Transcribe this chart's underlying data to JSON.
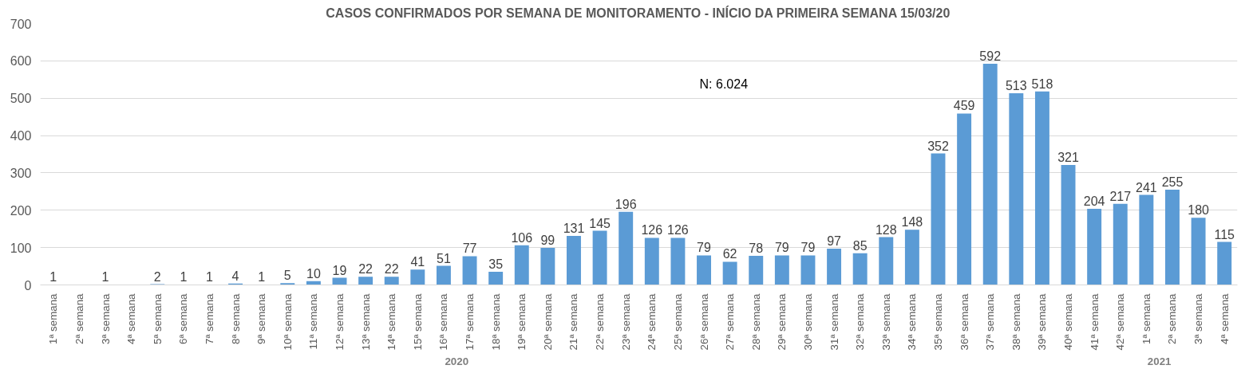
{
  "chart_data": {
    "type": "bar",
    "title": "CASOS CONFIRMADOS POR SEMANA DE MONITORAMENTO - INÍCIO DA PRIMEIRA SEMANA 15/03/20",
    "categories": [
      "1ª semana",
      "2ª semana",
      "3ª semana",
      "4ª semana",
      "5ª semana",
      "6ª semana",
      "7ª semana",
      "8ª semana",
      "9ª semana",
      "10ª semana",
      "11ª semana",
      "12ª semana",
      "13ª semana",
      "14ª semana",
      "15ª semana",
      "16ª semana",
      "17ª semana",
      "18ª semana",
      "19ª semana",
      "20ª semana",
      "21ª semana",
      "22ª semana",
      "23ª semana",
      "24ª semana",
      "25ª semana",
      "26ª semana",
      "27ª semana",
      "28ª semana",
      "29ª semana",
      "30ª semana",
      "31ª semana",
      "32ª semana",
      "33ª semana",
      "34ª semana",
      "35ª semana",
      "36ª semana",
      "37ª semana",
      "38ª semana",
      "39ª semana",
      "40ª semana",
      "41ª semana",
      "42ª semana",
      "1ª semana",
      "2ª semana",
      "3ª semana",
      "4ª semana"
    ],
    "values": [
      1,
      0,
      1,
      0,
      2,
      1,
      1,
      4,
      1,
      5,
      10,
      19,
      22,
      22,
      41,
      51,
      77,
      35,
      106,
      99,
      131,
      145,
      196,
      126,
      126,
      79,
      62,
      78,
      79,
      79,
      97,
      85,
      128,
      148,
      352,
      459,
      592,
      513,
      518,
      321,
      204,
      217,
      241,
      255,
      180,
      115
    ],
    "value_labels": [
      "1",
      null,
      "1",
      null,
      "2",
      "1",
      "1",
      "4",
      "1",
      "5",
      "10",
      "19",
      "22",
      "22",
      "41",
      "51",
      "77",
      "35",
      "106",
      "99",
      "131",
      "145",
      "196",
      "126",
      "126",
      "79",
      "62",
      "78",
      "79",
      "79",
      "97",
      "85",
      "128",
      "148",
      "352",
      "459",
      "592",
      "513",
      "518",
      "321",
      "204",
      "217",
      "241",
      "255",
      "180",
      "115"
    ],
    "color": "#5b9bd5",
    "ylim": [
      0,
      700
    ],
    "yticks": [
      0,
      100,
      200,
      300,
      400,
      500,
      600,
      700
    ],
    "grid": "y",
    "annotations": [
      "N: 6.024",
      "2020",
      "2021"
    ]
  }
}
